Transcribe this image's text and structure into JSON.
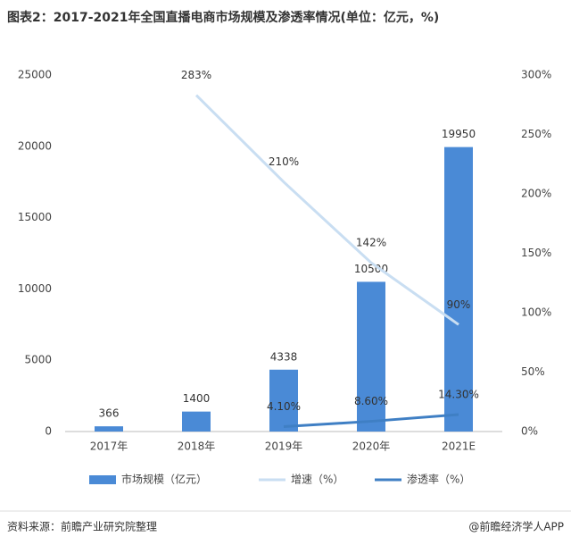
{
  "chart_data": {
    "type": "bar",
    "title": "图表2：2017-2021年全国直播电商市场规模及渗透率情况(单位：亿元，%)",
    "categories": [
      "2017年",
      "2018年",
      "2019年",
      "2020年",
      "2021E"
    ],
    "series": [
      {
        "name": "市场规模（亿元）",
        "type": "bar",
        "color": "#4a8ad6",
        "values": [
          366,
          1400,
          4338,
          10500,
          19950
        ]
      },
      {
        "name": "增速（%）",
        "type": "line",
        "axis": "y2",
        "color": "#c9def2",
        "values": [
          null,
          283,
          210,
          142,
          90
        ],
        "value_labels": [
          null,
          "283%",
          "210%",
          "142%",
          "90%"
        ]
      },
      {
        "name": "渗透率（%）",
        "type": "line",
        "axis": "y2",
        "color": "#3f7fc4",
        "values": [
          null,
          null,
          4.1,
          8.6,
          14.3
        ],
        "value_labels": [
          null,
          null,
          "4.10%",
          "8.60%",
          "14.30%"
        ]
      }
    ],
    "ylim": [
      0,
      25000
    ],
    "yticks": [
      0,
      5000,
      10000,
      15000,
      20000,
      25000
    ],
    "y2lim": [
      0,
      300
    ],
    "y2ticks": [
      {
        "value": 0,
        "label": "0%"
      },
      {
        "value": 50,
        "label": "50%"
      },
      {
        "value": 100,
        "label": "100%"
      },
      {
        "value": 150,
        "label": "150%"
      },
      {
        "value": 200,
        "label": "200%"
      },
      {
        "value": 250,
        "label": "250%"
      },
      {
        "value": 300,
        "label": "300%"
      }
    ],
    "legend": "bottom",
    "source": "资料来源：前瞻产业研究院整理",
    "footer_note": "@前瞻经济学人APP"
  }
}
